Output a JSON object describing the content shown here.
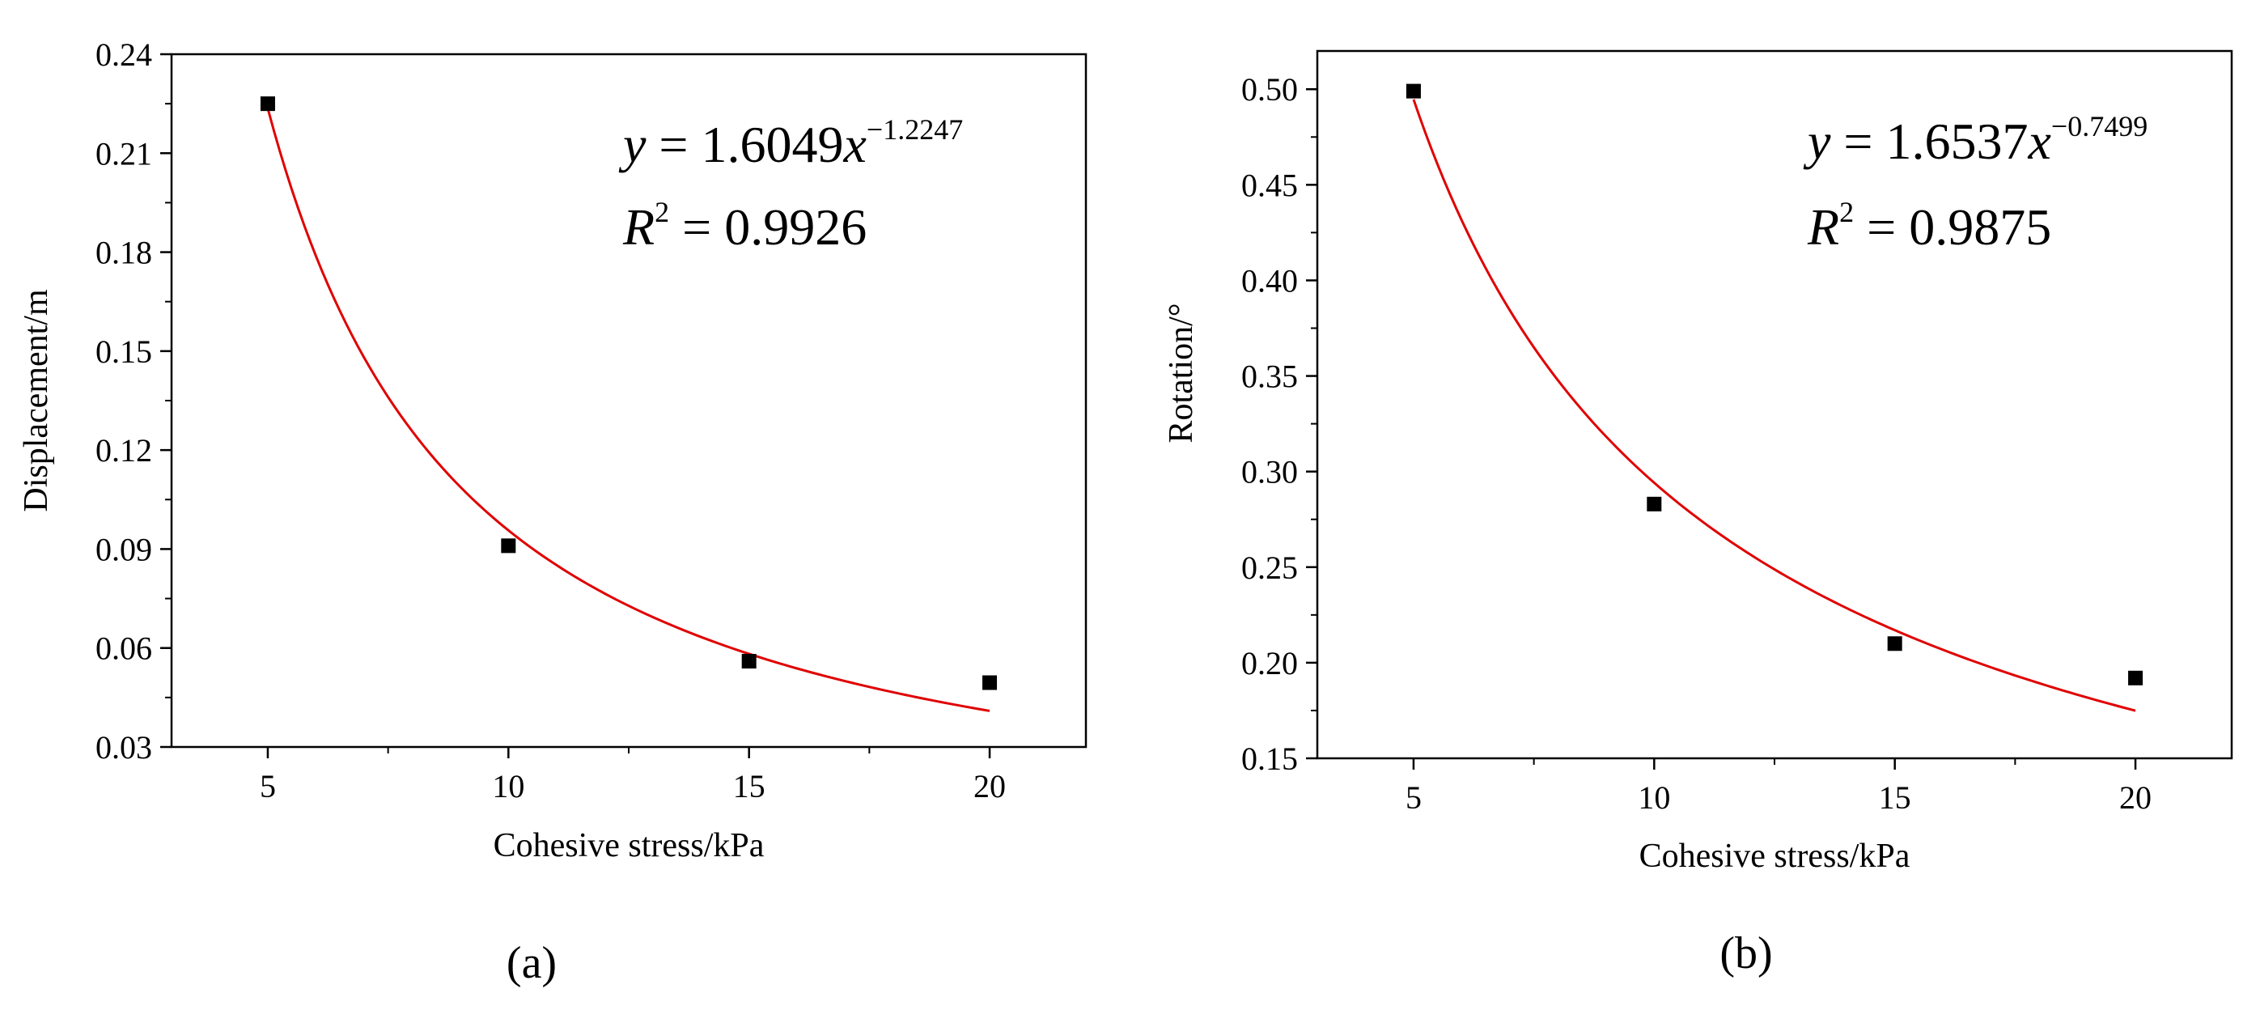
{
  "chart_data": [
    {
      "type": "scatter",
      "panel_label": "(a)",
      "xlabel": "Cohesive stress/kPa",
      "ylabel": "Displacement/m",
      "xlim": [
        3,
        22
      ],
      "ylim": [
        0.03,
        0.24
      ],
      "xticks": [
        5,
        10,
        15,
        20
      ],
      "xtick_labels": [
        "5",
        "10",
        "15",
        "20"
      ],
      "yticks": [
        0.03,
        0.06,
        0.09,
        0.12,
        0.15,
        0.18,
        0.21,
        0.24
      ],
      "ytick_labels": [
        "0.03",
        "0.06",
        "0.09",
        "0.12",
        "0.15",
        "0.18",
        "0.21",
        "0.24"
      ],
      "series": [
        {
          "name": "data",
          "x": [
            5,
            10,
            15,
            20
          ],
          "y": [
            0.225,
            0.091,
            0.056,
            0.0495
          ]
        }
      ],
      "fit": {
        "a": 1.6049,
        "b": -1.2247,
        "r2": 0.9926,
        "x_range": [
          5,
          20
        ],
        "color": "#e00000",
        "eq_y": "y",
        "eq_equals": " = 1.6049",
        "eq_x": "x",
        "eq_exp": "−1.2247",
        "r2_R": "R",
        "r2_sup": "2",
        "r2_rest": " = 0.9926"
      }
    },
    {
      "type": "scatter",
      "panel_label": "(b)",
      "xlabel": "Cohesive stress/kPa",
      "ylabel": "Rotation/°",
      "xlim": [
        3,
        22
      ],
      "ylim": [
        0.15,
        0.52
      ],
      "xticks": [
        5,
        10,
        15,
        20
      ],
      "xtick_labels": [
        "5",
        "10",
        "15",
        "20"
      ],
      "yticks": [
        0.15,
        0.2,
        0.25,
        0.3,
        0.35,
        0.4,
        0.45,
        0.5
      ],
      "ytick_labels": [
        "0.15",
        "0.20",
        "0.25",
        "0.30",
        "0.35",
        "0.40",
        "0.45",
        "0.50"
      ],
      "series": [
        {
          "name": "data",
          "x": [
            5,
            10,
            15,
            20
          ],
          "y": [
            0.499,
            0.283,
            0.21,
            0.192
          ]
        }
      ],
      "fit": {
        "a": 1.6537,
        "b": -0.7499,
        "r2": 0.9875,
        "x_range": [
          5,
          20
        ],
        "color": "#e00000",
        "eq_y": "y",
        "eq_equals": " = 1.6537",
        "eq_x": "x",
        "eq_exp": "−0.7499",
        "r2_R": "R",
        "r2_sup": "2",
        "r2_rest": " = 0.9875"
      }
    }
  ]
}
